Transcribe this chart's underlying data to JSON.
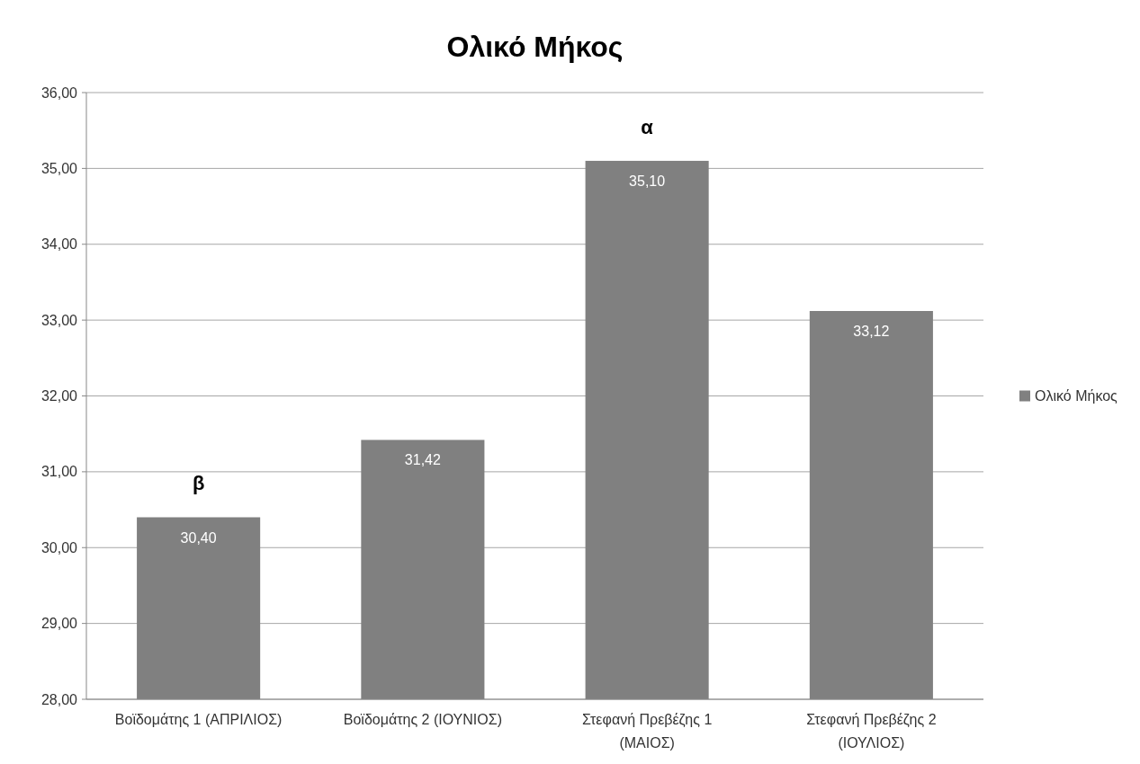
{
  "chart_data": {
    "type": "bar",
    "title": "Ολικό Μήκος",
    "categories": [
      "Βοϊδομάτης 1 (ΑΠΡΙΛΙΟΣ)",
      "Βοϊδομάτης 2 (ΙΟΥΝΙΟΣ)",
      "Στεφανή Πρεβέζης 1 (ΜΑΙΟΣ)",
      "Στεφανή Πρεβέζης 2 (ΙΟΥΛΙΟΣ)"
    ],
    "series": [
      {
        "name": "Ολικό Μήκος",
        "color": "#808080",
        "values": [
          30.4,
          31.42,
          35.1,
          33.12
        ],
        "value_labels": [
          "30,40",
          "31,42",
          "35,10",
          "33,12"
        ]
      }
    ],
    "ylim": [
      28,
      36
    ],
    "yticks": [
      {
        "value": 28,
        "label": "28,00"
      },
      {
        "value": 29,
        "label": "29,00"
      },
      {
        "value": 30,
        "label": "30,00"
      },
      {
        "value": 31,
        "label": "31,00"
      },
      {
        "value": 32,
        "label": "32,00"
      },
      {
        "value": 33,
        "label": "33,00"
      },
      {
        "value": 34,
        "label": "34,00"
      },
      {
        "value": 35,
        "label": "35,00"
      },
      {
        "value": 36,
        "label": "36,00"
      }
    ],
    "grid": "y",
    "legend": "right",
    "annotations": [
      "β",
      "α"
    ]
  }
}
